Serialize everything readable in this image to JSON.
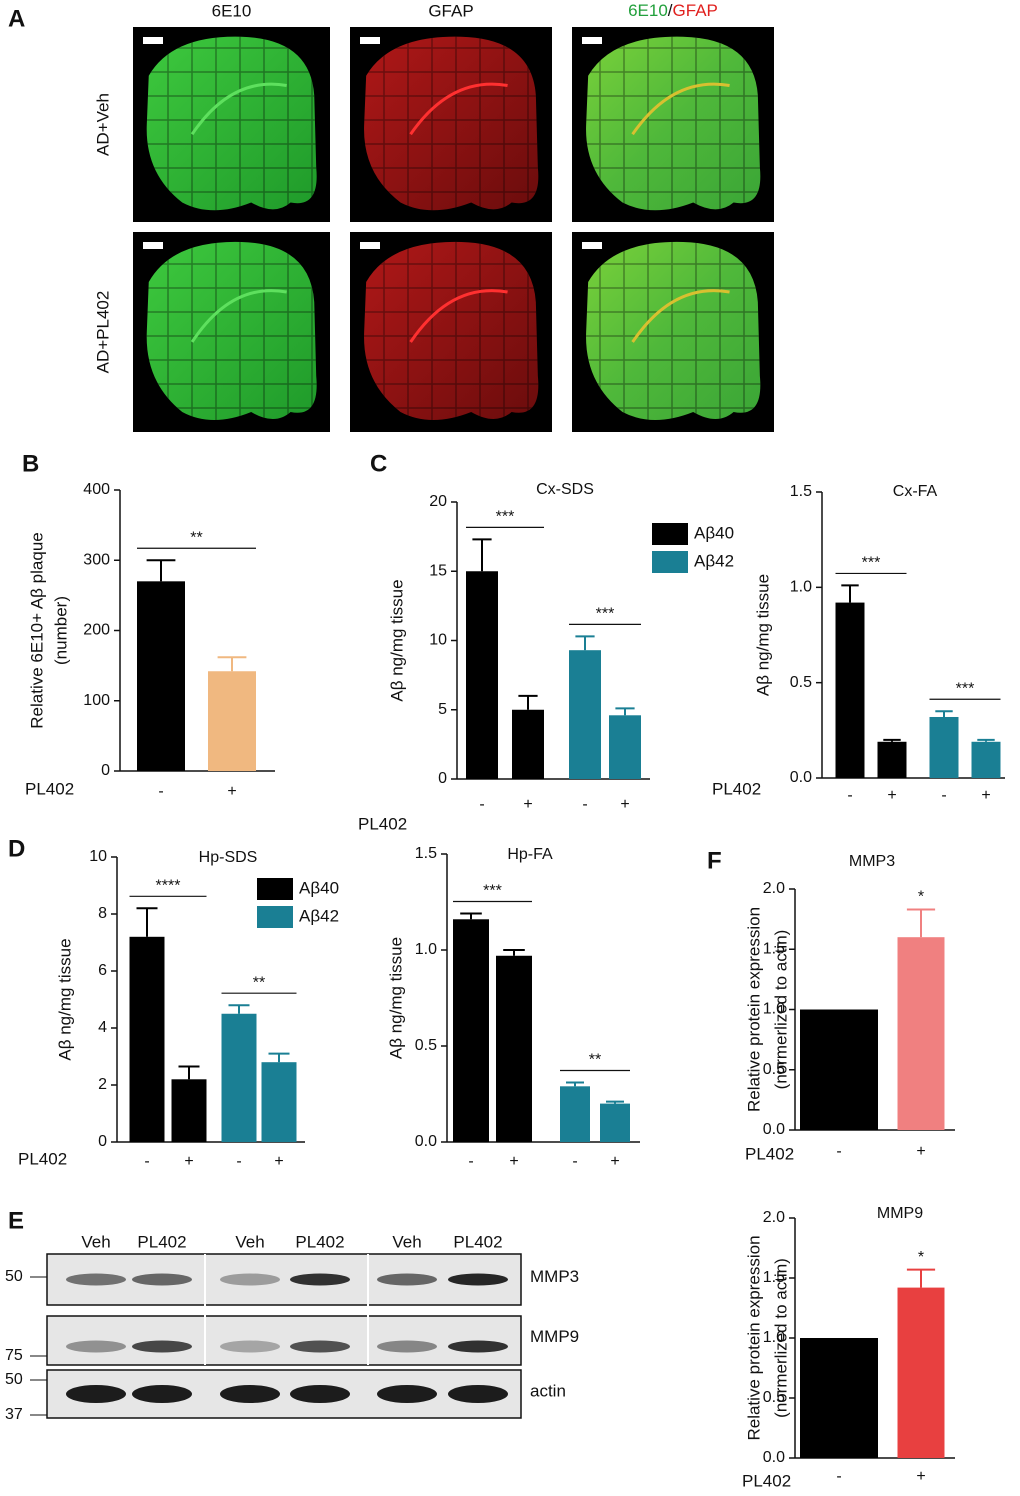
{
  "panel_letters": [
    "A",
    "B",
    "C",
    "D",
    "E",
    "F"
  ],
  "panel_a": {
    "columns": [
      "6E10",
      "GFAP"
    ],
    "merge_separator": "/",
    "column_colors": [
      "#22a03c",
      "#e0201e"
    ],
    "rows": [
      "AD+Veh",
      "AD+PL402"
    ]
  },
  "panel_e": {
    "lanes": [
      "Veh",
      "PL402",
      "Veh",
      "PL402",
      "Veh",
      "PL402"
    ],
    "bands": [
      "MMP3",
      "MMP9",
      "actin"
    ],
    "markers": [
      50,
      75,
      50,
      37
    ]
  },
  "chart_data": [
    {
      "type": "bar",
      "ylabel": [
        "Relative 6E10+ Aβ plaque",
        "(number)"
      ],
      "group_label": "PL402",
      "categories": [
        "-",
        "+"
      ],
      "values": [
        270,
        142
      ],
      "errors": [
        30,
        20
      ],
      "colors": [
        "#000000",
        "#f0b880"
      ],
      "ylim": [
        0,
        400
      ],
      "yticks": [
        0,
        100,
        200,
        300,
        400
      ],
      "significance": [
        {
          "bars": [
            0,
            1
          ],
          "label": "**"
        }
      ]
    },
    {
      "type": "bar",
      "title": "Cx-SDS",
      "ylabel": [
        "Aβ ng/mg tissue"
      ],
      "group_label": "PL402",
      "categories": [
        "-",
        "+"
      ],
      "legend": true,
      "series": [
        {
          "name": "Aβ40",
          "color": "#000000",
          "values": [
            15.0,
            5.0
          ],
          "errors": [
            2.3,
            1.0
          ]
        },
        {
          "name": "Aβ42",
          "color": "#1a7f94",
          "values": [
            9.3,
            4.6
          ],
          "errors": [
            1.0,
            0.5
          ]
        }
      ],
      "ylim": [
        0,
        20
      ],
      "yticks": [
        0,
        5,
        10,
        15,
        20
      ],
      "significance": [
        {
          "series": 0,
          "label": "***"
        },
        {
          "series": 1,
          "label": "***"
        }
      ]
    },
    {
      "type": "bar",
      "title": "Cx-FA",
      "ylabel": [
        "Aβ ng/mg tissue"
      ],
      "group_label": "PL402",
      "categories": [
        "-",
        "+"
      ],
      "legend": false,
      "series": [
        {
          "name": "Aβ40",
          "color": "#000000",
          "values": [
            0.92,
            0.19
          ],
          "errors": [
            0.09,
            0.01
          ]
        },
        {
          "name": "Aβ42",
          "color": "#1a7f94",
          "values": [
            0.32,
            0.19
          ],
          "errors": [
            0.03,
            0.01
          ]
        }
      ],
      "ylim": [
        0,
        1.5
      ],
      "yticks": [
        {
          "value": 0,
          "label": "0.0"
        },
        {
          "value": 0.5,
          "label": "0.5"
        },
        {
          "value": 1,
          "label": "1.0"
        },
        {
          "value": 1.5,
          "label": "1.5"
        }
      ],
      "significance": [
        {
          "series": 0,
          "label": "***"
        },
        {
          "series": 1,
          "label": "***"
        }
      ]
    },
    {
      "type": "bar",
      "title": "Hp-SDS",
      "ylabel": [
        "Aβ ng/mg tissue"
      ],
      "group_label": "PL402",
      "categories": [
        "-",
        "+"
      ],
      "legend": true,
      "series": [
        {
          "name": "Aβ40",
          "color": "#000000",
          "values": [
            7.2,
            2.2
          ],
          "errors": [
            1.0,
            0.45
          ]
        },
        {
          "name": "Aβ42",
          "color": "#1a7f94",
          "values": [
            4.5,
            2.8
          ],
          "errors": [
            0.3,
            0.3
          ]
        }
      ],
      "ylim": [
        0,
        10
      ],
      "yticks": [
        0,
        2,
        4,
        6,
        8,
        10
      ],
      "significance": [
        {
          "series": 0,
          "label": "****"
        },
        {
          "series": 1,
          "label": "**"
        }
      ]
    },
    {
      "type": "bar",
      "title": "Hp-FA",
      "ylabel": [
        "Aβ ng/mg tissue"
      ],
      "categories": [
        "-",
        "+"
      ],
      "legend": false,
      "series": [
        {
          "name": "Aβ40",
          "color": "#000000",
          "values": [
            1.16,
            0.97
          ],
          "errors": [
            0.03,
            0.03
          ]
        },
        {
          "name": "Aβ42",
          "color": "#1a7f94",
          "values": [
            0.29,
            0.2
          ],
          "errors": [
            0.02,
            0.01
          ]
        }
      ],
      "ylim": [
        0,
        1.5
      ],
      "yticks": [
        {
          "value": 0,
          "label": "0.0"
        },
        {
          "value": 0.5,
          "label": "0.5"
        },
        {
          "value": 1,
          "label": "1.0"
        },
        {
          "value": 1.5,
          "label": "1.5"
        }
      ],
      "significance": [
        {
          "series": 0,
          "label": "***"
        },
        {
          "series": 1,
          "label": "**"
        }
      ]
    },
    {
      "type": "bar",
      "title": "MMP3",
      "ylabel": [
        "Relative protein expression",
        "(normerlized to actin)"
      ],
      "group_label": "PL402",
      "categories": [
        "-",
        "+"
      ],
      "values": [
        1.0,
        1.6
      ],
      "errors": [
        null,
        0.23
      ],
      "colors": [
        "#000000",
        "#f08080"
      ],
      "ylim": [
        0,
        2
      ],
      "yticks": [
        {
          "value": 0,
          "label": "0.0"
        },
        {
          "value": 0.5,
          "label": "0.5"
        },
        {
          "value": 1,
          "label": "1.0"
        },
        {
          "value": 1.5,
          "label": "1.5"
        },
        {
          "value": 2,
          "label": "2.0"
        }
      ],
      "significance": [
        {
          "bars": [
            1
          ],
          "label": "*"
        }
      ]
    },
    {
      "type": "bar",
      "title": "MMP9",
      "ylabel": [
        "Relative protein expression",
        "(normerlized to actin)"
      ],
      "group_label": "PL402",
      "categories": [
        "-",
        "+"
      ],
      "values": [
        1.0,
        1.42
      ],
      "errors": [
        null,
        0.15
      ],
      "colors": [
        "#000000",
        "#e84040"
      ],
      "ylim": [
        0,
        2
      ],
      "yticks": [
        {
          "value": 0,
          "label": "0.0"
        },
        {
          "value": 0.5,
          "label": "0.5"
        },
        {
          "value": 1,
          "label": "1.0"
        },
        {
          "value": 1.5,
          "label": "1.5"
        },
        {
          "value": 2,
          "label": "2.0"
        }
      ],
      "significance": [
        {
          "bars": [
            1
          ],
          "label": "*"
        }
      ]
    }
  ]
}
